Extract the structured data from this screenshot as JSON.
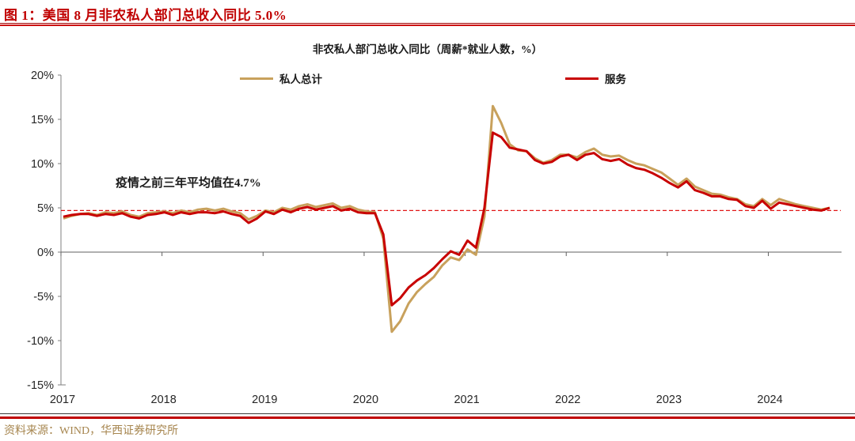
{
  "figure_header": {
    "title": "图 1：美国 8 月非农私人部门总收入同比 5.0%"
  },
  "source": "资料来源：WIND，华西证券研究所",
  "colors": {
    "header_red": "#c00000",
    "series_gold": "#c8a15c",
    "series_red": "#c80000",
    "reference_red": "#e01515",
    "axis_gray": "#7f7f7f",
    "zero_line_gray": "#606060",
    "axis_text": "#262626",
    "source_gold": "#a6854e"
  },
  "chart_data": {
    "type": "line",
    "title": "非农私人部门总收入同比（周薪*就业人数，%）",
    "xlabel": "",
    "ylabel": "",
    "ylim": [
      -15,
      20
    ],
    "grid": "zero-line-only",
    "legend_position": "top",
    "x_tick_labels": [
      "2017",
      "2018",
      "2019",
      "2020",
      "2021",
      "2022",
      "2023",
      "2024"
    ],
    "y_tick_labels": [
      "20%",
      "15%",
      "10%",
      "5%",
      "0%",
      "-5%",
      "-10%",
      "-15%"
    ],
    "y_tick_values": [
      20,
      15,
      10,
      5,
      0,
      -5,
      -10,
      -15
    ],
    "x_start": "2017-01",
    "x_end": "2024-08",
    "x_frequency": "monthly",
    "reference_line": {
      "value": 4.7,
      "style": "dashed",
      "annotation": "疫情之前三年平均值在4.7%"
    },
    "series": [
      {
        "name": "私人总计",
        "color": "#c8a15c",
        "values": [
          3.8,
          4.1,
          4.3,
          4.4,
          4.2,
          4.5,
          4.4,
          4.6,
          4.2,
          4.0,
          4.4,
          4.5,
          4.6,
          4.4,
          4.7,
          4.5,
          4.8,
          4.9,
          4.7,
          4.9,
          4.6,
          4.4,
          3.7,
          4.1,
          4.7,
          4.5,
          5.0,
          4.8,
          5.2,
          5.4,
          5.1,
          5.3,
          5.5,
          5.0,
          5.2,
          4.8,
          4.6,
          4.5,
          1.5,
          -9.0,
          -7.8,
          -5.8,
          -4.5,
          -3.6,
          -2.8,
          -1.5,
          -0.6,
          -0.9,
          0.3,
          -0.3,
          4.0,
          16.5,
          14.6,
          12.2,
          11.5,
          11.4,
          10.6,
          10.1,
          10.4,
          11.0,
          11.0,
          10.7,
          11.3,
          11.7,
          11.0,
          10.8,
          10.9,
          10.4,
          10.0,
          9.8,
          9.4,
          9.0,
          8.3,
          7.6,
          8.3,
          7.4,
          7.0,
          6.6,
          6.5,
          6.2,
          6.0,
          5.4,
          5.2,
          6.0,
          5.3,
          6.0,
          5.7,
          5.4,
          5.2,
          5.0,
          4.8,
          5.0
        ]
      },
      {
        "name": "服务",
        "color": "#c80000",
        "values": [
          4.0,
          4.2,
          4.3,
          4.3,
          4.1,
          4.3,
          4.2,
          4.4,
          4.0,
          3.8,
          4.2,
          4.3,
          4.5,
          4.2,
          4.5,
          4.3,
          4.5,
          4.5,
          4.4,
          4.6,
          4.3,
          4.1,
          3.3,
          3.8,
          4.6,
          4.3,
          4.8,
          4.5,
          4.9,
          5.1,
          4.8,
          5.0,
          5.2,
          4.7,
          4.9,
          4.5,
          4.4,
          4.4,
          2.0,
          -6.0,
          -5.2,
          -4.0,
          -3.2,
          -2.6,
          -1.8,
          -0.8,
          0.1,
          -0.3,
          1.3,
          0.5,
          5.0,
          13.5,
          13.0,
          11.8,
          11.6,
          11.4,
          10.4,
          10.0,
          10.2,
          10.8,
          11.0,
          10.4,
          11.0,
          11.2,
          10.5,
          10.3,
          10.5,
          9.9,
          9.5,
          9.3,
          8.9,
          8.4,
          7.8,
          7.3,
          8.0,
          7.0,
          6.7,
          6.3,
          6.3,
          6.0,
          5.9,
          5.2,
          5.0,
          5.8,
          4.9,
          5.6,
          5.4,
          5.2,
          5.0,
          4.8,
          4.7,
          5.0
        ]
      }
    ]
  }
}
